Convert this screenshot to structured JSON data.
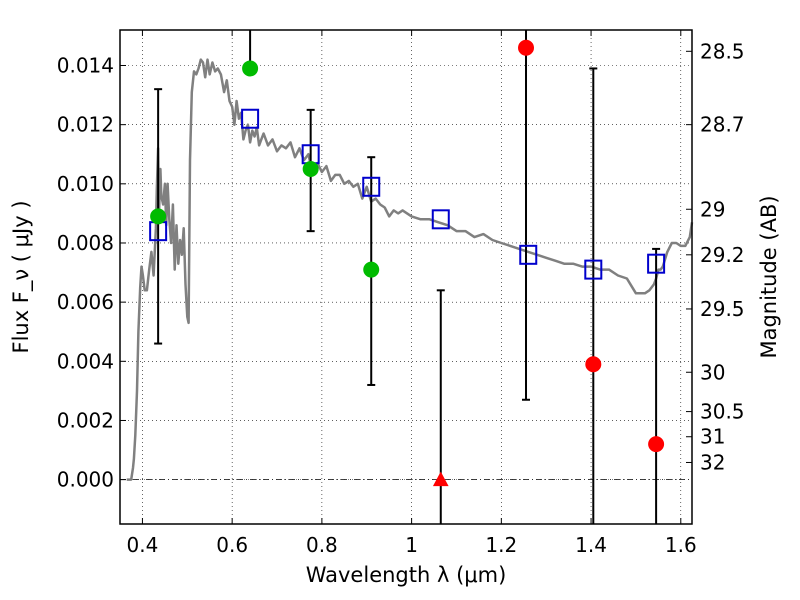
{
  "chart_data": {
    "type": "scatter",
    "xlabel": "Wavelength  λ (μm)",
    "ylabel": "Flux  F_ν  ( μJy )",
    "ylabel_right": "Magnitude (AB)",
    "xlim": [
      0.35,
      1.625
    ],
    "ylim": [
      -0.0015,
      0.0152
    ],
    "grid": true,
    "x_ticks": [
      0.4,
      0.6,
      0.8,
      1.0,
      1.2,
      1.4,
      1.6
    ],
    "x_tick_labels": [
      "0.4",
      "0.6",
      "0.8",
      "1",
      "1.2",
      "1.4",
      "1.6"
    ],
    "y_ticks": [
      0.0,
      0.002,
      0.004,
      0.006,
      0.008,
      0.01,
      0.012,
      0.014
    ],
    "y_tick_labels": [
      "0.000",
      "0.002",
      "0.004",
      "0.006",
      "0.008",
      "0.010",
      "0.012",
      "0.014"
    ],
    "right_ticks": [
      {
        "flux": 0.01448,
        "label": "28.5"
      },
      {
        "flux": 0.012,
        "label": "28.7"
      },
      {
        "flux": 0.00914,
        "label": "29"
      },
      {
        "flux": 0.0076,
        "label": "29.2"
      },
      {
        "flux": 0.00577,
        "label": "29.5"
      },
      {
        "flux": 0.00363,
        "label": "30"
      },
      {
        "flux": 0.0023,
        "label": "30.5"
      },
      {
        "flux": 0.00145,
        "label": "31"
      },
      {
        "flux": 0.00058,
        "label": "32"
      }
    ],
    "series": [
      {
        "kind": "sed_model_line",
        "color": "#808080",
        "x": [
          0.365,
          0.368,
          0.372,
          0.375,
          0.379,
          0.381,
          0.384,
          0.388,
          0.391,
          0.395,
          0.398,
          0.401,
          0.405,
          0.41,
          0.415,
          0.42,
          0.425,
          0.43,
          0.432,
          0.435,
          0.437,
          0.44,
          0.442,
          0.446,
          0.45,
          0.453,
          0.456,
          0.46,
          0.464,
          0.468,
          0.472,
          0.476,
          0.48,
          0.484,
          0.488,
          0.492,
          0.496,
          0.5,
          0.503,
          0.506,
          0.51,
          0.515,
          0.52,
          0.525,
          0.53,
          0.535,
          0.54,
          0.545,
          0.55,
          0.556,
          0.562,
          0.568,
          0.575,
          0.582,
          0.588,
          0.594,
          0.6,
          0.605,
          0.61,
          0.615,
          0.62,
          0.625,
          0.63,
          0.635,
          0.64,
          0.645,
          0.65,
          0.655,
          0.66,
          0.665,
          0.67,
          0.68,
          0.69,
          0.7,
          0.71,
          0.72,
          0.73,
          0.74,
          0.75,
          0.76,
          0.77,
          0.78,
          0.79,
          0.8,
          0.81,
          0.82,
          0.83,
          0.84,
          0.85,
          0.86,
          0.87,
          0.88,
          0.89,
          0.9,
          0.91,
          0.92,
          0.93,
          0.94,
          0.95,
          0.96,
          0.97,
          0.98,
          0.99,
          1.0,
          1.02,
          1.04,
          1.06,
          1.08,
          1.1,
          1.12,
          1.14,
          1.16,
          1.18,
          1.2,
          1.22,
          1.24,
          1.26,
          1.28,
          1.3,
          1.32,
          1.34,
          1.36,
          1.38,
          1.4,
          1.42,
          1.44,
          1.46,
          1.48,
          1.5,
          1.52,
          1.53,
          1.54,
          1.545,
          1.55,
          1.555,
          1.56,
          1.57,
          1.58,
          1.59,
          1.6,
          1.61,
          1.62,
          1.625
        ],
        "y": [
          0.0,
          0.0,
          0.0,
          0.0,
          0.0004,
          0.0007,
          0.0015,
          0.003,
          0.005,
          0.0065,
          0.0072,
          0.0069,
          0.0064,
          0.0064,
          0.0071,
          0.0077,
          0.0069,
          0.0085,
          0.0098,
          0.0112,
          0.009,
          0.0105,
          0.0096,
          0.0093,
          0.01,
          0.0086,
          0.01,
          0.0088,
          0.008,
          0.0093,
          0.0071,
          0.0086,
          0.0073,
          0.0081,
          0.0076,
          0.0085,
          0.0066,
          0.0055,
          0.0053,
          0.0108,
          0.0131,
          0.0138,
          0.0137,
          0.0139,
          0.0142,
          0.0141,
          0.0136,
          0.0142,
          0.0137,
          0.0141,
          0.0138,
          0.0139,
          0.0137,
          0.0131,
          0.0135,
          0.0128,
          0.0126,
          0.012,
          0.0128,
          0.0122,
          0.0124,
          0.0115,
          0.0118,
          0.012,
          0.0114,
          0.0118,
          0.0116,
          0.0119,
          0.0113,
          0.0115,
          0.0117,
          0.0113,
          0.0115,
          0.0111,
          0.0113,
          0.0112,
          0.0114,
          0.0109,
          0.0112,
          0.0108,
          0.011,
          0.0103,
          0.0107,
          0.0104,
          0.0106,
          0.0101,
          0.0103,
          0.0103,
          0.01,
          0.0101,
          0.0099,
          0.01,
          0.0095,
          0.0099,
          0.0094,
          0.0095,
          0.0093,
          0.0092,
          0.0089,
          0.0091,
          0.009,
          0.0091,
          0.009,
          0.0089,
          0.0088,
          0.0088,
          0.0087,
          0.0086,
          0.0084,
          0.0084,
          0.0082,
          0.0083,
          0.0081,
          0.008,
          0.0079,
          0.0078,
          0.0077,
          0.0076,
          0.0075,
          0.0074,
          0.0073,
          0.0073,
          0.0072,
          0.0072,
          0.0071,
          0.0071,
          0.0069,
          0.0068,
          0.0063,
          0.0063,
          0.0064,
          0.0066,
          0.0068,
          0.0071,
          0.0071,
          0.0072,
          0.0077,
          0.008,
          0.008,
          0.0079,
          0.0079,
          0.0082,
          0.0087
        ]
      },
      {
        "kind": "model_photometry",
        "marker": "open-square",
        "color": "#0000cc",
        "x": [
          0.435,
          0.64,
          0.775,
          0.91,
          1.065,
          1.26,
          1.405,
          1.545
        ],
        "y": [
          0.0084,
          0.0122,
          0.011,
          0.0099,
          0.0088,
          0.0076,
          0.0071,
          0.0073
        ]
      },
      {
        "kind": "observed_detection",
        "marker": "circle",
        "color": "#00bb00",
        "x": [
          0.435,
          0.64,
          0.775,
          0.91
        ],
        "y": [
          0.0089,
          0.0139,
          0.0105,
          0.0071
        ],
        "err_low": [
          0.0046,
          null,
          0.0084,
          0.0032
        ],
        "err_high": [
          0.0132,
          0.0152,
          0.0125,
          0.0109
        ]
      },
      {
        "kind": "observed_lowsn",
        "marker": "circle",
        "color": "#ff0000",
        "x": [
          1.255,
          1.405,
          1.545
        ],
        "y": [
          0.0146,
          0.0039,
          0.0012
        ],
        "err_low": [
          0.0027,
          -0.0015,
          -0.0015
        ],
        "err_high": [
          0.0152,
          0.0139,
          0.0078
        ]
      },
      {
        "kind": "observed_upper",
        "marker": "triangle",
        "color": "#ff0000",
        "x": [
          1.065
        ],
        "y": [
          0.0
        ],
        "err_low": [
          -0.0015
        ],
        "err_high": [
          0.0064
        ]
      }
    ]
  }
}
